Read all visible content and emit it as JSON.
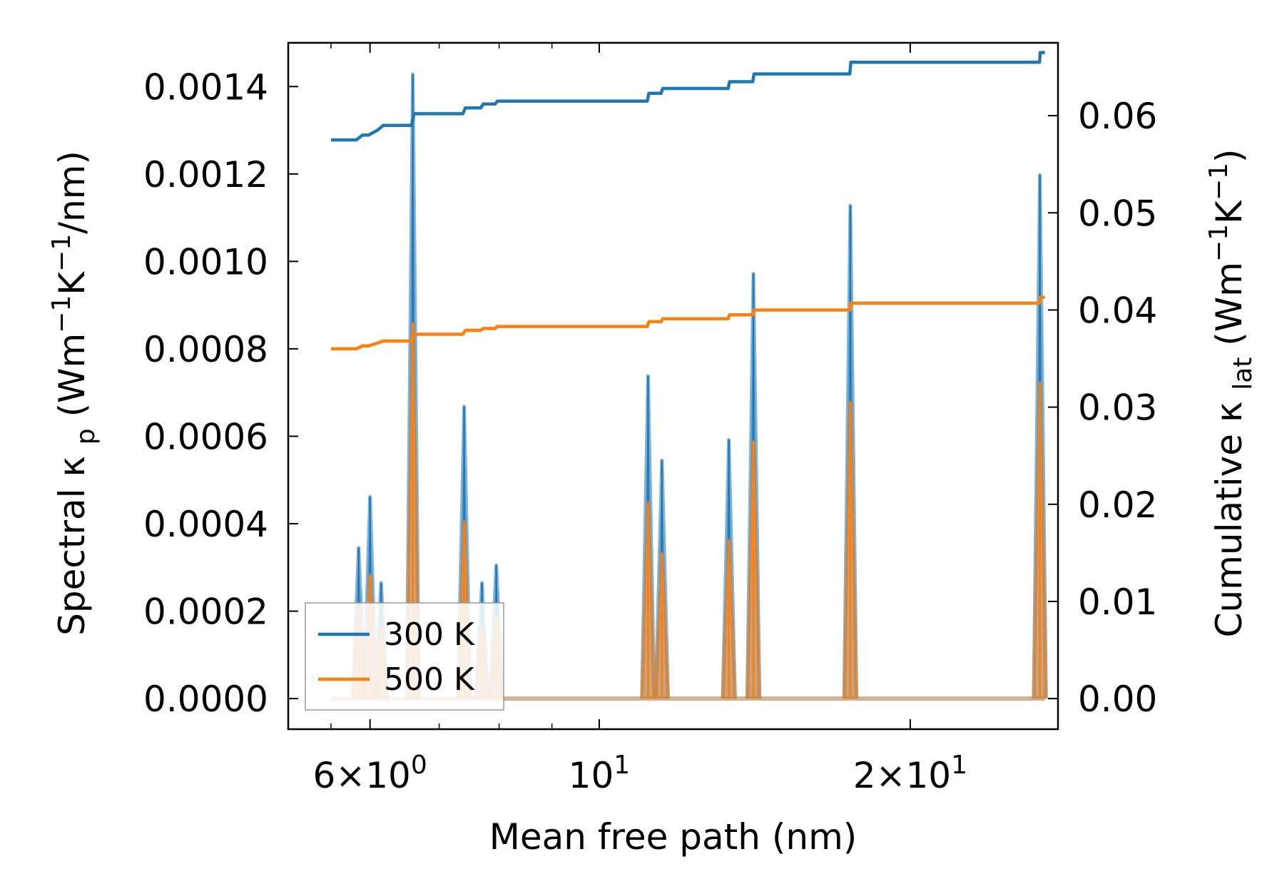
{
  "chart_data": {
    "type": "line",
    "xscale": "log",
    "xlabel": "Mean free path (nm)",
    "ylabel_left": {
      "base": "Spectral κ",
      "sub": "p",
      "units": "(Wm",
      "sup1": "−1",
      "mid": "K",
      "sup2": "−1",
      "tail": "/nm)"
    },
    "ylabel_right": {
      "base": "Cumulative κ",
      "sub": "lat",
      "units": "(Wm",
      "sup1": "−1",
      "mid": "K",
      "sup2": "−1",
      "tail": ")"
    },
    "xlim": [
      5.0,
      27.8
    ],
    "ylim_left": [
      -7e-05,
      0.0015
    ],
    "ylim_right": [
      -0.00315,
      0.0675
    ],
    "x_ticks": [
      {
        "value": 6,
        "mant": "6",
        "times": "×",
        "base": "10",
        "exp": "0"
      },
      {
        "value": 10,
        "mant": "",
        "times": "",
        "base": "10",
        "exp": "1"
      },
      {
        "value": 20,
        "mant": "2",
        "times": "×",
        "base": "10",
        "exp": "1"
      }
    ],
    "x_minor_ticks": [
      5.5,
      7,
      8,
      9,
      30
    ],
    "y_left_ticks": [
      "0.0000",
      "0.0002",
      "0.0004",
      "0.0006",
      "0.0008",
      "0.0010",
      "0.0012",
      "0.0014"
    ],
    "y_left_values": [
      0,
      0.0002,
      0.0004,
      0.0006,
      0.0008,
      0.001,
      0.0012,
      0.0014
    ],
    "y_right_ticks": [
      "0.00",
      "0.01",
      "0.02",
      "0.03",
      "0.04",
      "0.05",
      "0.06"
    ],
    "y_right_values": [
      0,
      0.01,
      0.02,
      0.03,
      0.04,
      0.05,
      0.06
    ],
    "spectral_series": [
      {
        "name": "300 K",
        "color": "#1f77b4",
        "x_range": [
          5.5,
          27.0
        ],
        "peaks": [
          {
            "x": 5.85,
            "y": 0.000345
          },
          {
            "x": 6.0,
            "y": 0.000462
          },
          {
            "x": 6.15,
            "y": 0.000265
          },
          {
            "x": 6.6,
            "y": 0.001428
          },
          {
            "x": 7.4,
            "y": 0.000668
          },
          {
            "x": 7.7,
            "y": 0.000265
          },
          {
            "x": 7.95,
            "y": 0.000305
          },
          {
            "x": 11.15,
            "y": 0.000738
          },
          {
            "x": 11.5,
            "y": 0.000545
          },
          {
            "x": 13.35,
            "y": 0.000592
          },
          {
            "x": 14.1,
            "y": 0.000972
          },
          {
            "x": 17.5,
            "y": 0.001128
          },
          {
            "x": 26.7,
            "y": 0.001198
          }
        ]
      },
      {
        "name": "500 K",
        "color": "#ff7f0e",
        "x_range": [
          5.5,
          27.0
        ],
        "peaks": [
          {
            "x": 5.85,
            "y": 0.000208
          },
          {
            "x": 6.0,
            "y": 0.000282
          },
          {
            "x": 6.15,
            "y": 0.000162
          },
          {
            "x": 6.6,
            "y": 0.000858
          },
          {
            "x": 7.4,
            "y": 0.000405
          },
          {
            "x": 7.7,
            "y": 0.000162
          },
          {
            "x": 7.95,
            "y": 0.000188
          },
          {
            "x": 11.15,
            "y": 0.000448
          },
          {
            "x": 11.5,
            "y": 0.000332
          },
          {
            "x": 13.35,
            "y": 0.000362
          },
          {
            "x": 14.1,
            "y": 0.000588
          },
          {
            "x": 17.5,
            "y": 0.000678
          },
          {
            "x": 26.7,
            "y": 0.000722
          }
        ]
      }
    ],
    "cumulative_series": [
      {
        "name": "300 K",
        "color": "#1f77b4",
        "x": [
          5.5,
          5.82,
          5.9,
          5.98,
          6.1,
          6.18,
          6.58,
          6.62,
          7.38,
          7.42,
          7.68,
          7.72,
          7.93,
          7.97,
          11.13,
          11.17,
          11.48,
          11.52,
          13.33,
          13.37,
          14.08,
          14.12,
          17.48,
          17.52,
          26.68,
          26.72,
          27.0
        ],
        "y": [
          0.0575,
          0.0575,
          0.058,
          0.058,
          0.0585,
          0.059,
          0.059,
          0.0602,
          0.0602,
          0.0608,
          0.0608,
          0.0612,
          0.0612,
          0.0615,
          0.0615,
          0.0623,
          0.0623,
          0.0628,
          0.0628,
          0.0635,
          0.0635,
          0.0643,
          0.0643,
          0.0655,
          0.0655,
          0.0665,
          0.0665
        ]
      },
      {
        "name": "500 K",
        "color": "#ff7f0e",
        "x": [
          5.5,
          5.82,
          5.9,
          5.98,
          6.1,
          6.18,
          6.58,
          6.62,
          7.38,
          7.42,
          7.68,
          7.72,
          7.93,
          7.97,
          11.13,
          11.17,
          11.48,
          11.52,
          13.33,
          13.37,
          14.08,
          14.12,
          17.48,
          17.52,
          26.68,
          26.72,
          27.0
        ],
        "y": [
          0.036,
          0.036,
          0.0363,
          0.0363,
          0.0366,
          0.0368,
          0.0368,
          0.0375,
          0.0375,
          0.0379,
          0.0379,
          0.0381,
          0.0381,
          0.0383,
          0.0383,
          0.0388,
          0.0388,
          0.0391,
          0.0391,
          0.0395,
          0.0395,
          0.04,
          0.04,
          0.0407,
          0.0407,
          0.0413,
          0.0413
        ]
      }
    ],
    "legend": {
      "position": "lower-left",
      "entries": [
        {
          "label": "300 K",
          "color": "#1f77b4"
        },
        {
          "label": "500 K",
          "color": "#ff7f0e"
        }
      ]
    }
  }
}
